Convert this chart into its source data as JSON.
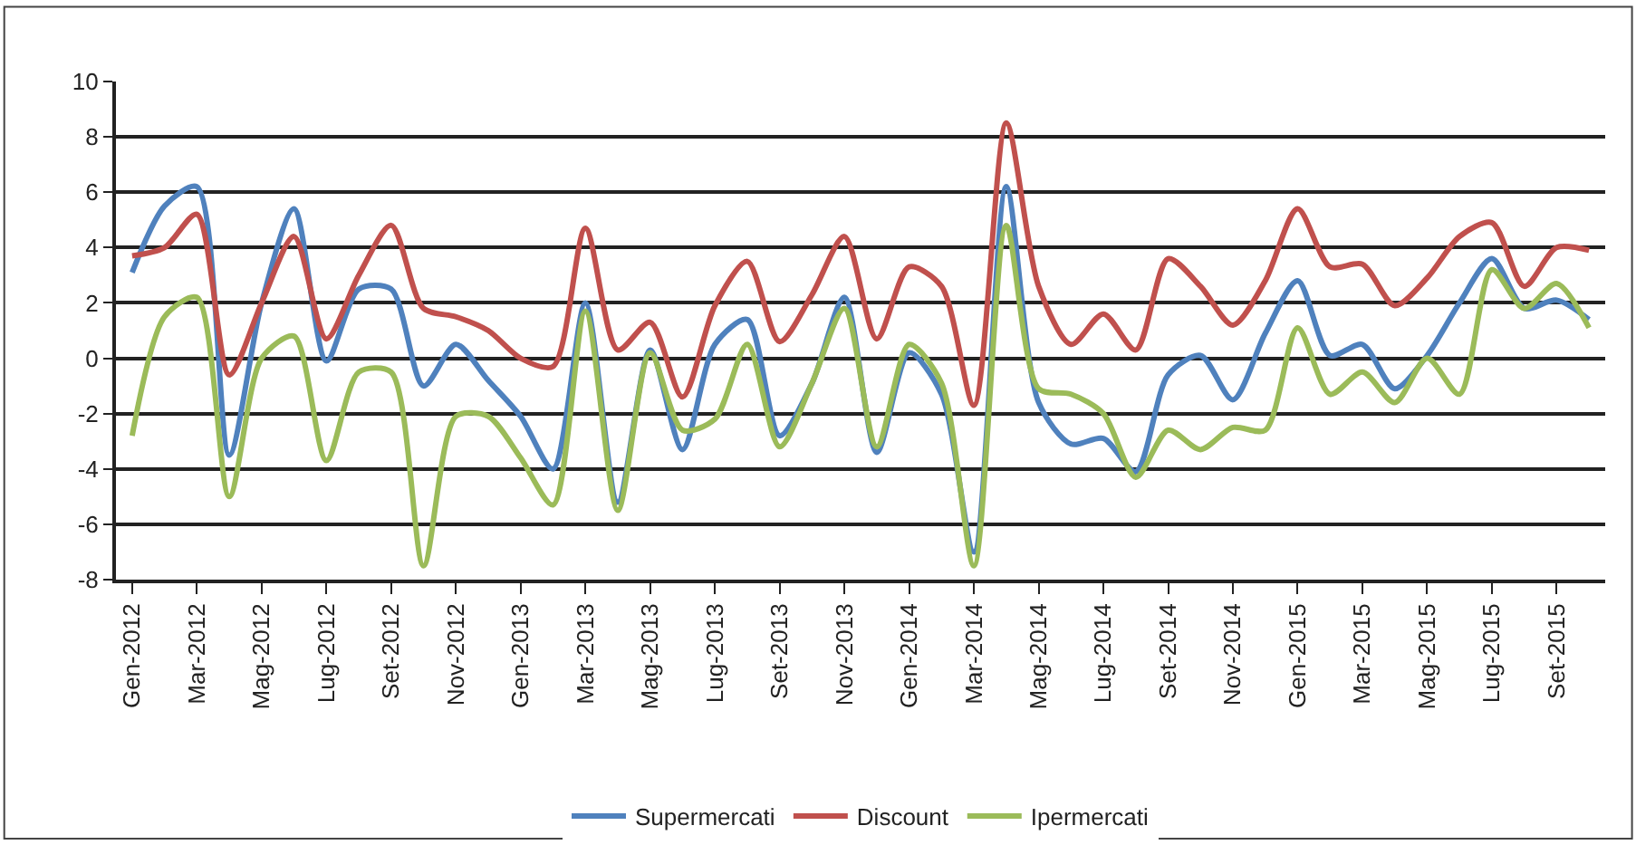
{
  "chart_data": {
    "type": "line",
    "categories": [
      "Gen-2012",
      null,
      "Mar-2012",
      null,
      "Mag-2012",
      null,
      "Lug-2012",
      null,
      "Set-2012",
      null,
      "Nov-2012",
      null,
      "Gen-2013",
      null,
      "Mar-2013",
      null,
      "Mag-2013",
      null,
      "Lug-2013",
      null,
      "Set-2013",
      null,
      "Nov-2013",
      null,
      "Gen-2014",
      null,
      "Mar-2014",
      null,
      "Mag-2014",
      null,
      "Lug-2014",
      null,
      "Set-2014",
      null,
      "Nov-2014",
      null,
      "Gen-2015",
      null,
      "Mar-2015",
      null,
      "Mag-2015",
      null,
      "Lug-2015",
      null,
      "Set-2015",
      null
    ],
    "series": [
      {
        "name": "Supermercati",
        "color": "#4f81bd",
        "values": [
          3.1,
          5.5,
          6.2,
          -3.5,
          2.0,
          5.4,
          -0.1,
          2.5,
          2.5,
          -1.0,
          0.5,
          -0.8,
          -2.1,
          -4.0,
          2.0,
          -5.2,
          0.3,
          -3.3,
          0.5,
          1.4,
          -2.8,
          -0.9,
          2.2,
          -3.4,
          0.2,
          -1.3,
          -7.0,
          6.2,
          -1.6,
          -3.1,
          -2.9,
          -4.1,
          -0.6,
          0.1,
          -1.5,
          0.9,
          2.8,
          0.1,
          0.5,
          -1.1,
          0.1,
          2.0,
          3.6,
          1.8,
          2.1,
          1.4
        ]
      },
      {
        "name": "Discount",
        "color": "#c0504d",
        "values": [
          3.7,
          4.0,
          5.2,
          -0.6,
          2.0,
          4.4,
          0.7,
          3.0,
          4.8,
          1.8,
          1.5,
          1.0,
          0.0,
          -0.3,
          4.7,
          0.3,
          1.3,
          -1.4,
          1.9,
          3.5,
          0.6,
          2.3,
          4.4,
          0.7,
          3.3,
          2.6,
          -1.7,
          8.5,
          2.6,
          0.5,
          1.6,
          0.3,
          3.6,
          2.6,
          1.2,
          2.8,
          5.4,
          3.3,
          3.4,
          1.9,
          2.9,
          4.4,
          4.9,
          2.6,
          4.0,
          3.9
        ]
      },
      {
        "name": "Ipermercati",
        "color": "#9bbb59",
        "values": [
          -2.8,
          1.5,
          2.2,
          -5.0,
          0.0,
          0.8,
          -3.7,
          -0.5,
          -0.5,
          -7.5,
          -2.1,
          -2.1,
          -3.6,
          -5.3,
          1.7,
          -5.5,
          0.2,
          -2.6,
          -2.2,
          0.5,
          -3.2,
          -0.9,
          1.8,
          -3.2,
          0.5,
          -0.9,
          -7.5,
          4.8,
          -1.1,
          -1.3,
          -2.0,
          -4.3,
          -2.6,
          -3.3,
          -2.5,
          -2.6,
          1.1,
          -1.3,
          -0.5,
          -1.6,
          0.0,
          -1.3,
          3.2,
          1.8,
          2.7,
          1.1
        ]
      }
    ],
    "ylim": [
      -8,
      10
    ],
    "yticks": [
      -8,
      -6,
      -4,
      -2,
      0,
      2,
      4,
      6,
      8,
      10
    ],
    "grid": "y",
    "legend": "bottom",
    "marker": "none",
    "line_style": "solid"
  }
}
